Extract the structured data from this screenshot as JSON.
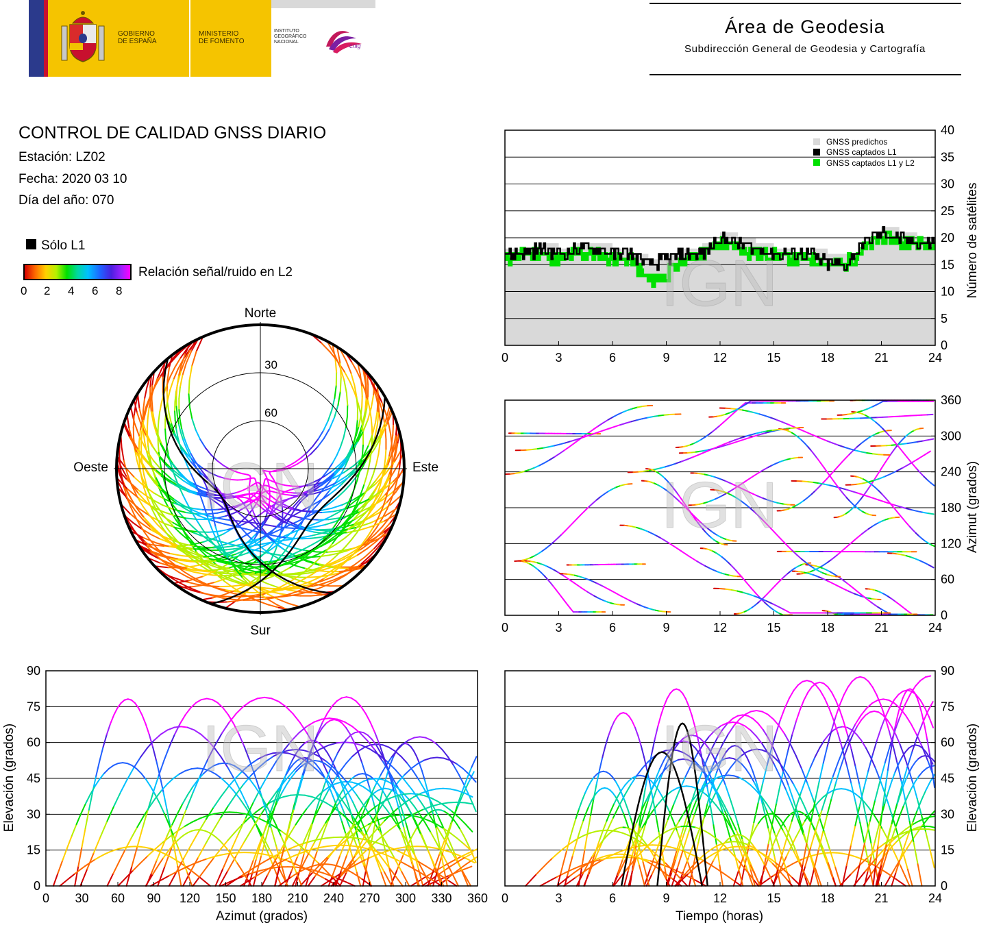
{
  "header": {
    "gov": [
      "GOBIERNO",
      "DE ESPAÑA"
    ],
    "ministry": [
      "MINISTERIO",
      "DE FOMENTO"
    ],
    "institute": [
      "INSTITUTO",
      "GEOGRÁFICO",
      "NACIONAL"
    ],
    "cnig": "cnig",
    "area_title": "Área de Geodesia",
    "area_subtitle": "Subdirección General de Geodesia y Cartografía"
  },
  "report": {
    "title": "CONTROL DE CALIDAD GNSS DIARIO",
    "station": "Estación: LZ02",
    "date": "Fecha: 2020 03 10",
    "doy": "Día del año: 070",
    "legend_l1": "Sólo L1",
    "colorbar_label": "Relación señal/ruido en L2",
    "colorbar_ticks": [
      "0",
      "2",
      "4",
      "6",
      "8"
    ],
    "watermark": "IGN"
  },
  "colors": {
    "predicted": "#d9d9d9",
    "l1": "#000000",
    "l1l2": "#00e000",
    "snr_scale": [
      "#d40000",
      "#ff6a00",
      "#ffd000",
      "#b6f000",
      "#00e000",
      "#00d8a0",
      "#00c0ff",
      "#2060ff",
      "#4b20e0",
      "#a020ff",
      "#ff00ff"
    ]
  },
  "chart_data": [
    {
      "type": "line",
      "id": "satellite-count",
      "xlabel": "",
      "ylabel": "Número de satélites",
      "xlim": [
        0,
        24
      ],
      "ylim": [
        0,
        40
      ],
      "xticks": [
        "0",
        "3",
        "6",
        "9",
        "12",
        "15",
        "18",
        "21",
        "24"
      ],
      "yticks": [
        "0",
        "5",
        "10",
        "15",
        "20",
        "25",
        "30",
        "35",
        "40"
      ],
      "grid": true,
      "legend_position": "top-right",
      "legend": [
        "GNSS predichos",
        "GNSS captados L1",
        "GNSS captados L1 y L2"
      ],
      "x": [
        0,
        1,
        2,
        3,
        4,
        5,
        6,
        7,
        8,
        9,
        10,
        11,
        12,
        13,
        14,
        15,
        16,
        17,
        18,
        19,
        20,
        21,
        22,
        23,
        24
      ],
      "series": [
        {
          "name": "GNSS predichos",
          "values": [
            18,
            18,
            19,
            18,
            19,
            19,
            18,
            17,
            16,
            17,
            18,
            19,
            21,
            20,
            19,
            18,
            17,
            18,
            17,
            17,
            20,
            22,
            21,
            20,
            20
          ]
        },
        {
          "name": "GNSS captados L1",
          "values": [
            17,
            17,
            18,
            17,
            18,
            18,
            17,
            17,
            15,
            16,
            17,
            17,
            20,
            19,
            18,
            17,
            17,
            17,
            15,
            15,
            19,
            21,
            20,
            19,
            19
          ]
        },
        {
          "name": "GNSS captados L1 y L2",
          "values": [
            16,
            17,
            17,
            16,
            17,
            17,
            16,
            16,
            12,
            13,
            16,
            17,
            19,
            18,
            17,
            17,
            16,
            16,
            15,
            15,
            18,
            20,
            19,
            19,
            19
          ]
        }
      ]
    },
    {
      "type": "scatter",
      "id": "sky-plot",
      "labels": {
        "north": "Norte",
        "south": "Sur",
        "east": "Este",
        "west": "Oeste"
      },
      "rings": [
        "30",
        "60"
      ]
    },
    {
      "type": "scatter",
      "id": "azimuth-time",
      "ylabel": "Azimut (grados)",
      "xlim": [
        0,
        24
      ],
      "ylim": [
        0,
        360
      ],
      "xticks": [
        "0",
        "3",
        "6",
        "9",
        "12",
        "15",
        "18",
        "21",
        "24"
      ],
      "yticks": [
        "0",
        "60",
        "120",
        "180",
        "240",
        "300",
        "360"
      ],
      "grid": true
    },
    {
      "type": "scatter",
      "id": "elevation-azimuth",
      "xlabel": "Azimut (grados)",
      "ylabel": "Elevación (grados)",
      "xlim": [
        0,
        360
      ],
      "ylim": [
        0,
        90
      ],
      "xticks": [
        "0",
        "30",
        "60",
        "90",
        "120",
        "150",
        "180",
        "210",
        "240",
        "270",
        "300",
        "330",
        "360"
      ],
      "yticks": [
        "0",
        "15",
        "30",
        "45",
        "60",
        "75",
        "90"
      ],
      "grid": true
    },
    {
      "type": "scatter",
      "id": "elevation-time",
      "xlabel": "Tiempo (horas)",
      "ylabel": "Elevación (grados)",
      "xlim": [
        0,
        24
      ],
      "ylim": [
        0,
        90
      ],
      "xticks": [
        "0",
        "3",
        "6",
        "9",
        "12",
        "15",
        "18",
        "21",
        "24"
      ],
      "yticks": [
        "0",
        "15",
        "30",
        "45",
        "60",
        "75",
        "90"
      ],
      "grid": true
    }
  ]
}
